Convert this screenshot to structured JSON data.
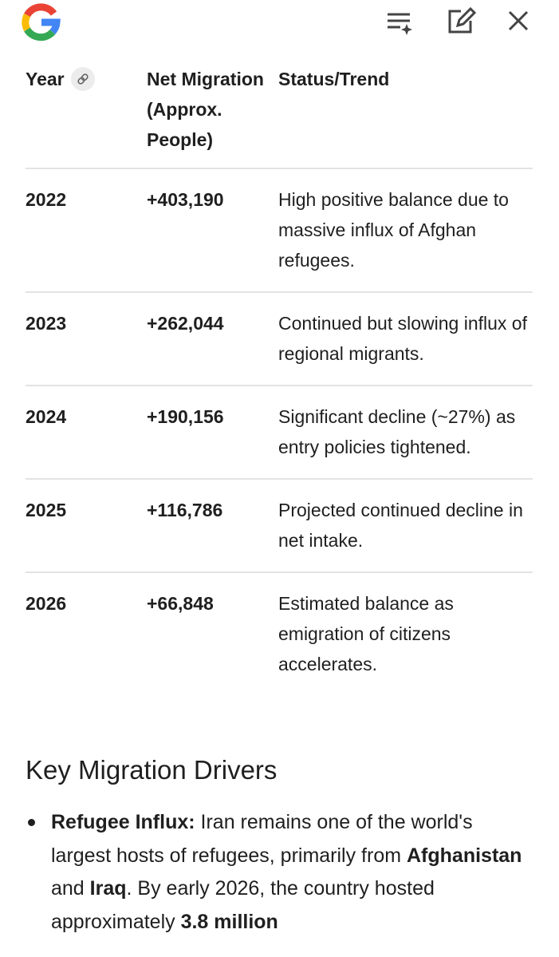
{
  "table": {
    "columns": [
      "Year",
      "Net Migration (Approx. People)",
      "Status/Trend"
    ],
    "rows": [
      [
        "2022",
        "+403,190",
        "High positive balance due to massive influx of Afghan refugees."
      ],
      [
        "2023",
        "+262,044",
        "Continued but slowing influx of regional migrants."
      ],
      [
        "2024",
        "+190,156",
        "Significant decline (~27%) as entry policies tightened."
      ],
      [
        "2025",
        "+116,786",
        "Projected continued decline in net intake."
      ],
      [
        "2026",
        "+66,848",
        "Estimated balance as emigration of citizens accelerates."
      ]
    ]
  },
  "section": {
    "heading": "Key Migration Drivers",
    "bullets": [
      [
        {
          "text": "Refugee Influx:",
          "bold": true
        },
        {
          "text": " Iran remains one of the world's largest hosts of refugees, primarily from ",
          "bold": false
        },
        {
          "text": "Afghanistan",
          "bold": true
        },
        {
          "text": " and ",
          "bold": false
        },
        {
          "text": "Iraq",
          "bold": true
        },
        {
          "text": ". By early 2026, the country hosted approximately ",
          "bold": false
        },
        {
          "text": "3.8 million",
          "bold": true
        }
      ]
    ]
  }
}
